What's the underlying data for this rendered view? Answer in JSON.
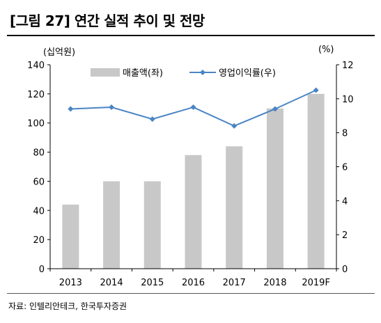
{
  "title": "[그림 27] 연간 실적 추이 및 전망",
  "source": "자료: 인텔리안테크, 한국투자증권",
  "chart_data": {
    "type": "bar+line",
    "categories": [
      "2013",
      "2014",
      "2015",
      "2016",
      "2017",
      "2018",
      "2019F"
    ],
    "series": [
      {
        "name": "매출액(좌)",
        "type": "bar",
        "axis": "left",
        "color": "#c8c8c8",
        "values": [
          44,
          60,
          60,
          78,
          84,
          110,
          120
        ]
      },
      {
        "name": "영업이익률(우)",
        "type": "line",
        "axis": "right",
        "color": "#4a84c4",
        "values": [
          9.4,
          9.5,
          8.8,
          9.5,
          8.4,
          9.4,
          10.5
        ]
      }
    ],
    "ylabel_left": "(십억원)",
    "ylabel_right": "(%)",
    "ylim_left": [
      0,
      140
    ],
    "ylim_right": [
      0,
      12
    ],
    "yticks_left": [
      "0",
      "20",
      "40",
      "60",
      "80",
      "100",
      "120",
      "140"
    ],
    "yticks_right": [
      "0",
      "2",
      "4",
      "6",
      "8",
      "10",
      "12"
    ],
    "grid": false,
    "legend": "top"
  }
}
